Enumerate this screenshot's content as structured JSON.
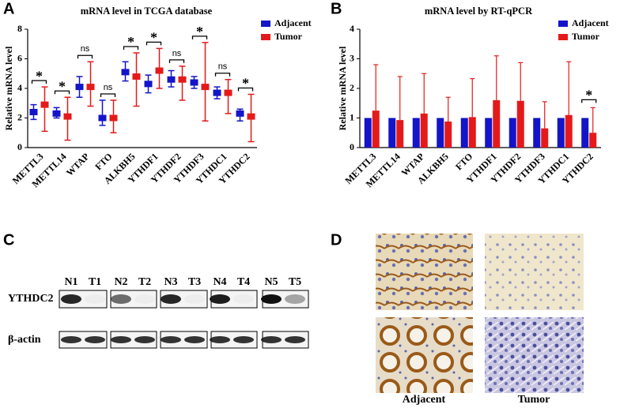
{
  "chart_data": [
    {
      "type": "errorbar",
      "panel": "A",
      "title": "mRNA level in TCGA database",
      "y_label": "Relative mRNA level",
      "categories": [
        "METTL3",
        "METTL14",
        "WTAP",
        "FTO",
        "ALKBH5",
        "YTHDF1",
        "YTHDF2",
        "YTHDF3",
        "YTHDC1",
        "YTHDC2"
      ],
      "series": [
        {
          "name": "Adjacent",
          "color": "#1414c8",
          "values": [
            2.4,
            2.3,
            4.1,
            2.0,
            5.1,
            4.3,
            4.6,
            4.4,
            3.7,
            2.3
          ],
          "low": [
            1.9,
            2.0,
            3.4,
            1.5,
            4.5,
            3.7,
            4.1,
            4.0,
            3.3,
            1.8
          ],
          "high": [
            2.9,
            2.7,
            4.8,
            3.2,
            5.8,
            4.9,
            5.2,
            4.8,
            4.1,
            2.6
          ]
        },
        {
          "name": "Tumor",
          "color": "#e41a1a",
          "values": [
            2.9,
            2.1,
            4.1,
            2.0,
            4.8,
            5.2,
            4.6,
            4.1,
            3.7,
            2.1
          ],
          "low": [
            1.1,
            0.5,
            2.8,
            1.0,
            2.8,
            4.0,
            3.2,
            1.8,
            2.3,
            0.4
          ],
          "high": [
            4.1,
            3.4,
            5.8,
            3.2,
            6.4,
            6.7,
            5.5,
            7.1,
            4.6,
            3.6
          ]
        }
      ],
      "ylim": [
        0,
        8
      ],
      "yticks": [
        0,
        2,
        4,
        6,
        8
      ],
      "annotations": [
        {
          "category": "METTL3",
          "text": "*"
        },
        {
          "category": "METTL14",
          "text": "*"
        },
        {
          "category": "WTAP",
          "text": "ns"
        },
        {
          "category": "FTO",
          "text": "ns"
        },
        {
          "category": "ALKBH5",
          "text": "*"
        },
        {
          "category": "YTHDF1",
          "text": "*"
        },
        {
          "category": "YTHDF2",
          "text": "ns"
        },
        {
          "category": "YTHDF3",
          "text": "*"
        },
        {
          "category": "YTHDC1",
          "text": "ns"
        },
        {
          "category": "YTHDC2",
          "text": "*"
        }
      ]
    },
    {
      "type": "bar",
      "panel": "B",
      "title": "mRNA level by RT-qPCR",
      "y_label": "Relative mRNA level",
      "categories": [
        "METTL3",
        "METTL14",
        "WTAP",
        "ALKBH5",
        "FTO",
        "YTHDF1",
        "YTHDF2",
        "YTHDF3",
        "YTHDC1",
        "YTHDC2"
      ],
      "series": [
        {
          "name": "Adjacent",
          "color": "#1414c8",
          "values": [
            1,
            1,
            1,
            1,
            1,
            1,
            1,
            1,
            1,
            1
          ]
        },
        {
          "name": "Tumor",
          "color": "#e41a1a",
          "values": [
            1.25,
            0.93,
            1.15,
            0.88,
            1.03,
            1.6,
            1.58,
            0.65,
            1.1,
            0.5
          ],
          "errors": [
            1.55,
            1.47,
            1.35,
            0.82,
            1.3,
            1.5,
            1.29,
            0.9,
            1.8,
            0.85
          ]
        }
      ],
      "ylim": [
        0,
        4
      ],
      "yticks": [
        0,
        1,
        2,
        3,
        4
      ],
      "annotations": [
        {
          "category": "YTHDC2",
          "text": "*"
        }
      ]
    }
  ],
  "blot": {
    "panel": "C",
    "lanes": [
      "N1",
      "T1",
      "N2",
      "T2",
      "N3",
      "T3",
      "N4",
      "T4",
      "N5",
      "T5"
    ],
    "rows": [
      "YTHDC2",
      "β-actin"
    ]
  },
  "ihc": {
    "panel": "D",
    "columns": [
      "Adjacent",
      "Tumor"
    ]
  }
}
